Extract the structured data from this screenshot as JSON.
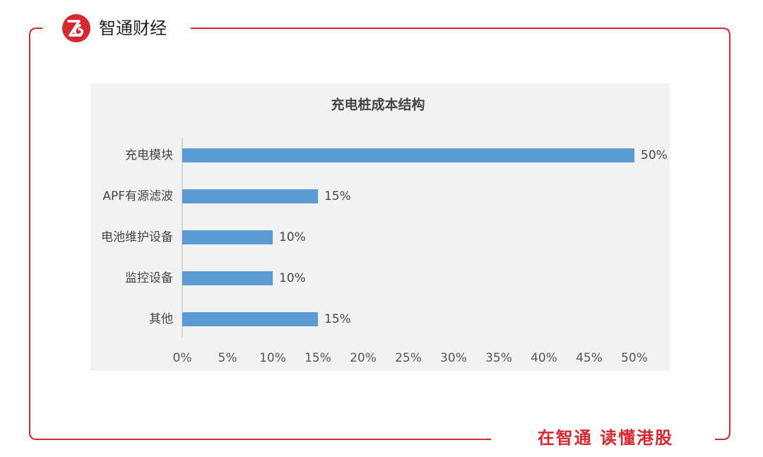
{
  "brand": "智通财经",
  "slogan": "在智通 读懂港股",
  "chart_data": {
    "type": "barh",
    "title": "充电桩成本结构",
    "categories": [
      "充电模块",
      "APF有源滤波",
      "电池维护设备",
      "监控设备",
      "其他"
    ],
    "values": [
      50,
      15,
      10,
      10,
      15
    ],
    "value_labels": [
      "50%",
      "15%",
      "10%",
      "10%",
      "15%"
    ],
    "color": "#5b9bd5",
    "xlim": [
      0,
      50
    ],
    "xticks": [
      {
        "value": 0,
        "label": "0%"
      },
      {
        "value": 5,
        "label": "5%"
      },
      {
        "value": 10,
        "label": "10%"
      },
      {
        "value": 15,
        "label": "15%"
      },
      {
        "value": 20,
        "label": "20%"
      },
      {
        "value": 25,
        "label": "25%"
      },
      {
        "value": 30,
        "label": "30%"
      },
      {
        "value": 35,
        "label": "35%"
      },
      {
        "value": 40,
        "label": "40%"
      },
      {
        "value": 45,
        "label": "45%"
      },
      {
        "value": 50,
        "label": "50%"
      }
    ],
    "grid": false
  }
}
